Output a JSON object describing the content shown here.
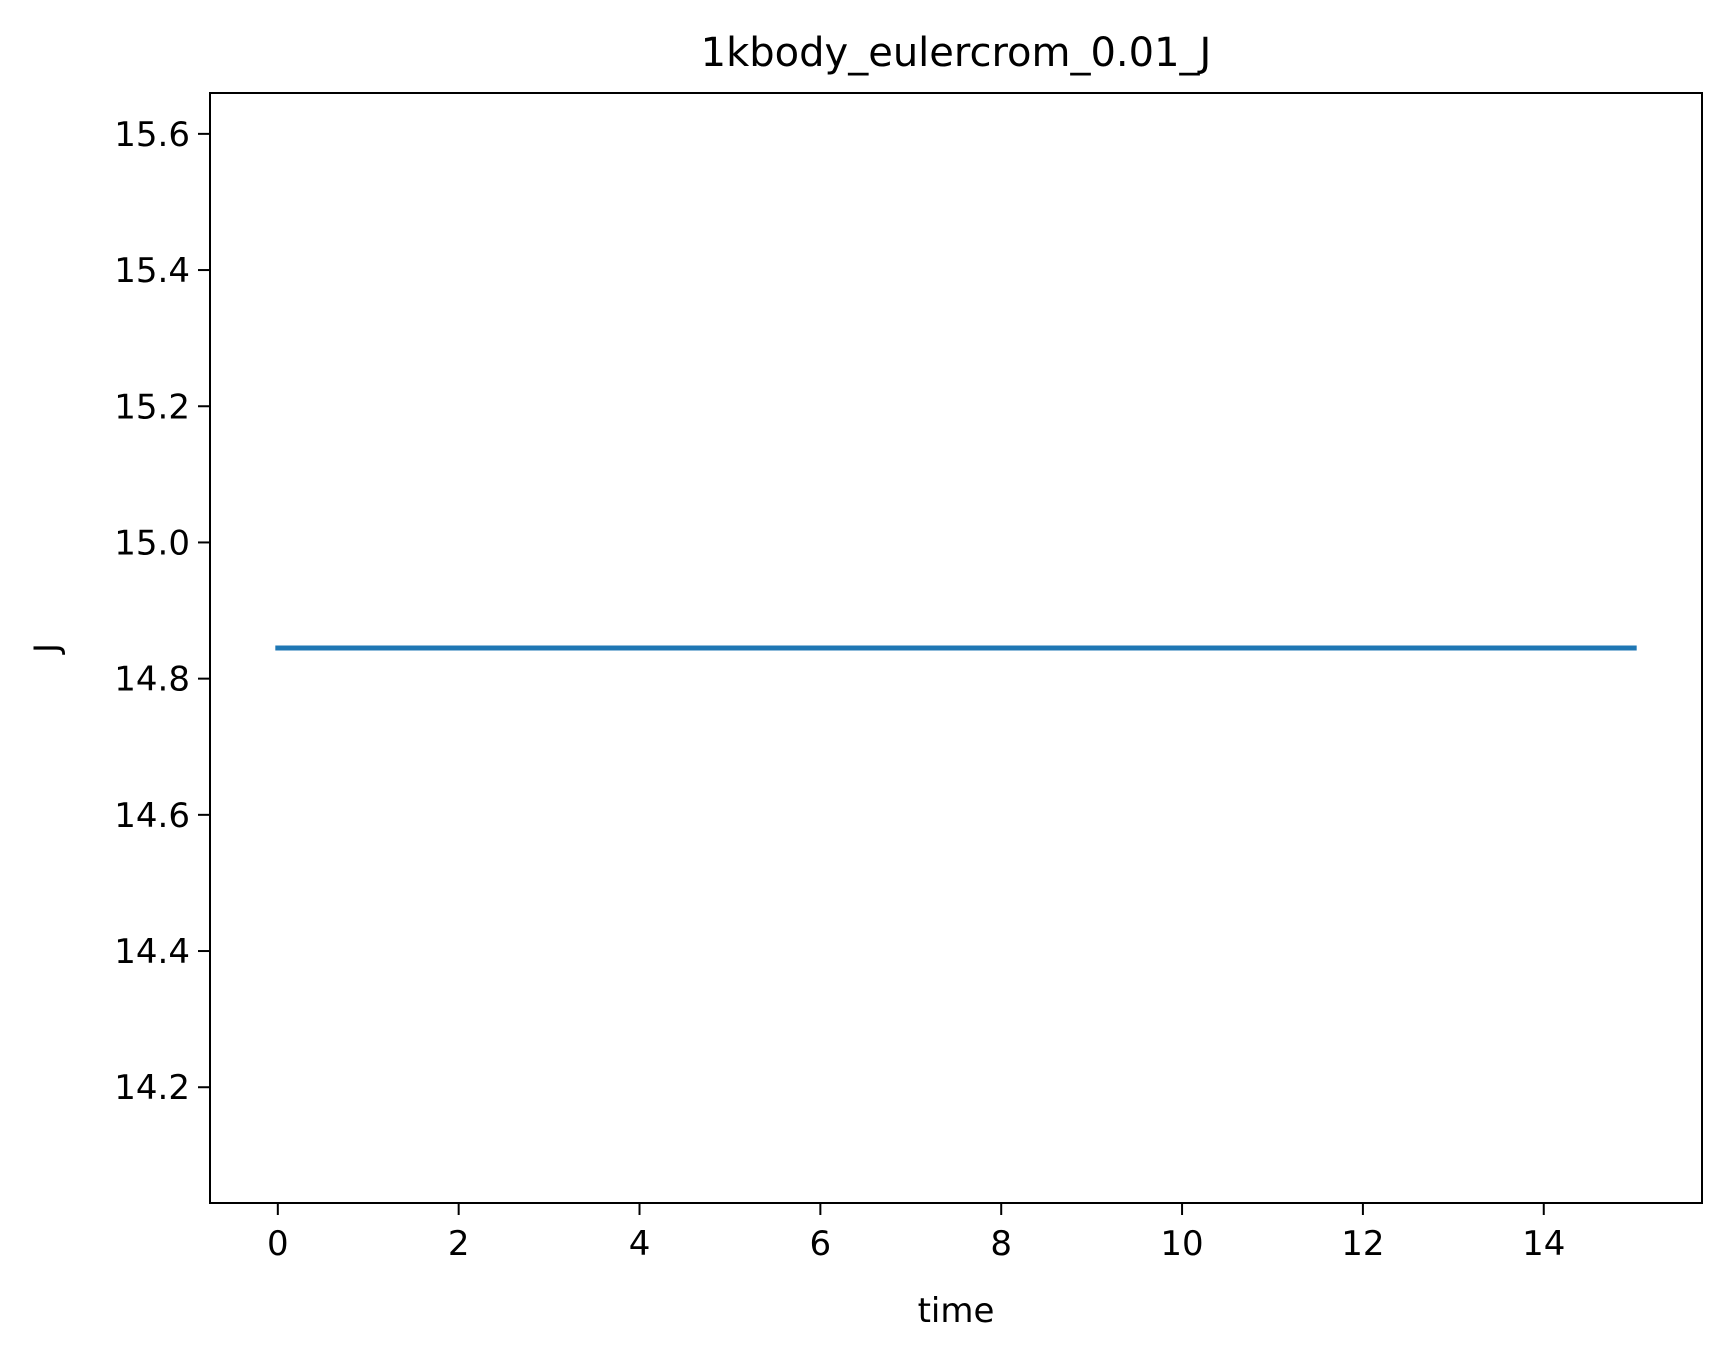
{
  "chart_data": {
    "type": "line",
    "title": "1kbody_eulercrom_0.01_J",
    "xlabel": "time",
    "ylabel": "J",
    "xlim": [
      -0.75,
      15.75
    ],
    "ylim": [
      14.03,
      15.66
    ],
    "x_ticks": [
      0,
      2,
      4,
      6,
      8,
      10,
      12,
      14
    ],
    "x_tick_labels": [
      "0",
      "2",
      "4",
      "6",
      "8",
      "10",
      "12",
      "14"
    ],
    "y_ticks": [
      14.2,
      14.4,
      14.6,
      14.8,
      15.0,
      15.2,
      15.4,
      15.6
    ],
    "y_tick_labels": [
      "14.2",
      "14.4",
      "14.6",
      "14.8",
      "15.0",
      "15.2",
      "15.4",
      "15.6"
    ],
    "grid": false,
    "legend": "none",
    "series": [
      {
        "color": "#1f77b4",
        "x": [
          0,
          15
        ],
        "y": [
          14.845,
          14.845
        ]
      }
    ]
  }
}
